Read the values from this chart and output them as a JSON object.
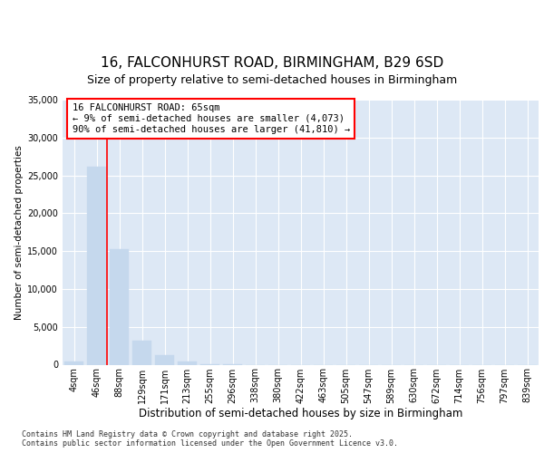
{
  "title1": "16, FALCONHURST ROAD, BIRMINGHAM, B29 6SD",
  "title2": "Size of property relative to semi-detached houses in Birmingham",
  "xlabel": "Distribution of semi-detached houses by size in Birmingham",
  "ylabel": "Number of semi-detached properties",
  "categories": [
    "4sqm",
    "46sqm",
    "88sqm",
    "129sqm",
    "171sqm",
    "213sqm",
    "255sqm",
    "296sqm",
    "338sqm",
    "380sqm",
    "422sqm",
    "463sqm",
    "505sqm",
    "547sqm",
    "589sqm",
    "630sqm",
    "672sqm",
    "714sqm",
    "756sqm",
    "797sqm",
    "839sqm"
  ],
  "values": [
    400,
    26100,
    15200,
    3200,
    1200,
    400,
    100,
    50,
    0,
    0,
    0,
    0,
    0,
    0,
    0,
    0,
    0,
    0,
    0,
    0,
    0
  ],
  "bar_color": "#c5d8ed",
  "bar_edge_color": "#c5d8ed",
  "ylim": [
    0,
    35000
  ],
  "yticks": [
    0,
    5000,
    10000,
    15000,
    20000,
    25000,
    30000,
    35000
  ],
  "annotation_title": "16 FALCONHURST ROAD: 65sqm",
  "annotation_line1": "← 9% of semi-detached houses are smaller (4,073)",
  "annotation_line2": "90% of semi-detached houses are larger (41,810) →",
  "background_color": "#ffffff",
  "plot_bg_color": "#dde8f5",
  "footer1": "Contains HM Land Registry data © Crown copyright and database right 2025.",
  "footer2": "Contains public sector information licensed under the Open Government Licence v3.0.",
  "title1_fontsize": 11,
  "title2_fontsize": 9,
  "xlabel_fontsize": 8.5,
  "ylabel_fontsize": 7.5,
  "tick_fontsize": 7,
  "annot_fontsize": 7.5,
  "footer_fontsize": 6
}
